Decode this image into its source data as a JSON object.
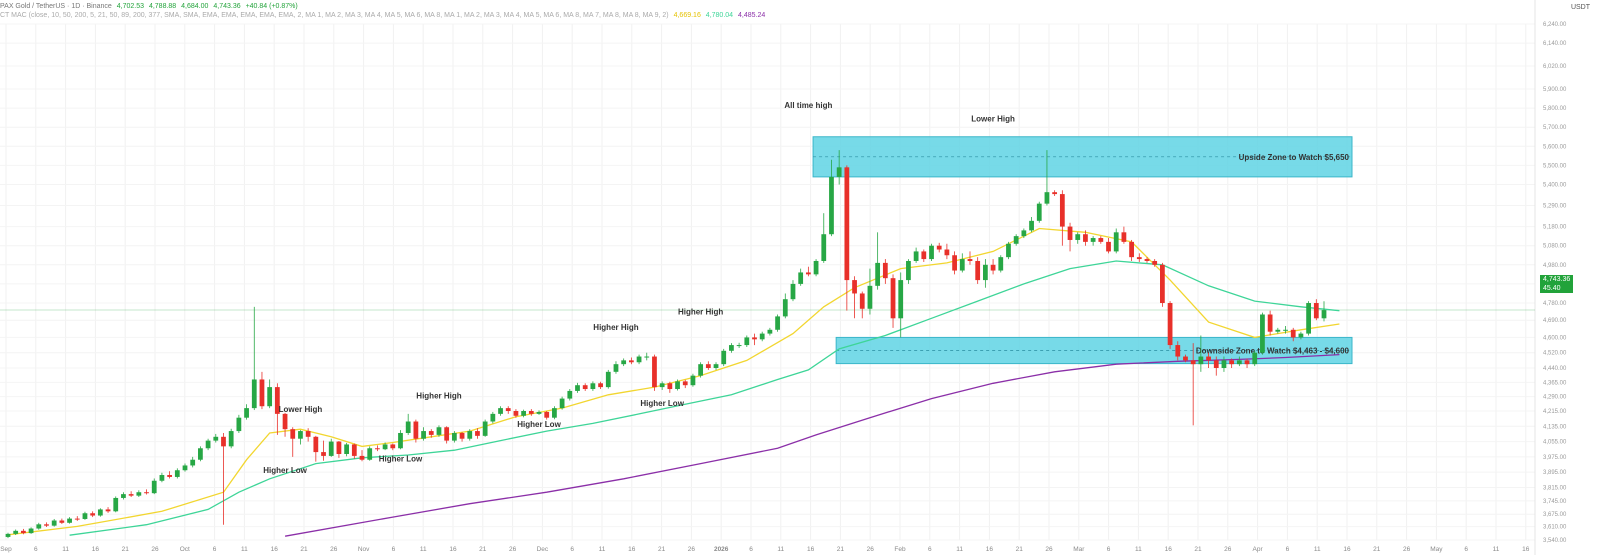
{
  "header": {
    "symbol": "PAX Gold / TetherUS · 1D · Binance",
    "open": "4,702.53",
    "high": "4,788.88",
    "low": "4,684.00",
    "close": "4,743.36",
    "change": "+40.84 (+0.87%)",
    "indicator_label": "CT MAC (close, 10, 50, 200, 5, 21, 50, 89, 200, 377, SMA, SMA, EMA, EMA, EMA, EMA, EMA, 2, MA 1, MA 2, MA 3, MA 4, MA 5, MA 6, MA 8, MA 1, MA 2, MA 3, MA 4, MA 5, MA 6, MA 8, MA 7, MA 8, MA 8, MA 9, 2)",
    "ma_values": [
      "4,669.16",
      "4,780.04",
      "4,485.24"
    ],
    "ma_colors": [
      "#e5c200",
      "#3ed598",
      "#8b2fa8"
    ]
  },
  "price_axis": {
    "currency": "USDT",
    "last_price": "4,743.36",
    "last_price_sub": "45.40",
    "last_price_color": "#22a33a"
  },
  "chart_data": {
    "type": "candlestick",
    "ylim": [
      3540,
      6240
    ],
    "y_ticks": [
      3540,
      3610,
      3675,
      3745,
      3815,
      3895,
      3975,
      4055,
      4135,
      4215,
      4290,
      4365,
      4440,
      4520,
      4600,
      4690,
      4780,
      4880,
      4980,
      5080,
      5180,
      5290,
      5400,
      5500,
      5600,
      5700,
      5800,
      5900,
      6020,
      6140,
      6240
    ],
    "x_ticks": [
      "Sep",
      "6",
      "11",
      "16",
      "21",
      "26",
      "Oct",
      "6",
      "11",
      "16",
      "21",
      "26",
      "Nov",
      "6",
      "11",
      "16",
      "21",
      "26",
      "Dec",
      "6",
      "11",
      "16",
      "21",
      "26",
      "2026",
      "6",
      "11",
      "16",
      "21",
      "26",
      "Feb",
      "6",
      "11",
      "16",
      "21",
      "26",
      "Mar",
      "6",
      "11",
      "16",
      "21",
      "26",
      "Apr",
      "6",
      "11",
      "16",
      "21",
      "26",
      "May",
      "6",
      "11",
      "16"
    ],
    "candles": [
      [
        3556,
        3572,
        3550,
        3578
      ],
      [
        3572,
        3588,
        3566,
        3595
      ],
      [
        3588,
        3576,
        3570,
        3598
      ],
      [
        3576,
        3600,
        3572,
        3606
      ],
      [
        3600,
        3622,
        3594,
        3630
      ],
      [
        3622,
        3615,
        3608,
        3632
      ],
      [
        3615,
        3642,
        3610,
        3650
      ],
      [
        3642,
        3630,
        3624,
        3652
      ],
      [
        3630,
        3652,
        3626,
        3660
      ],
      [
        3652,
        3650,
        3640,
        3665
      ],
      [
        3650,
        3680,
        3645,
        3688
      ],
      [
        3680,
        3668,
        3660,
        3690
      ],
      [
        3668,
        3700,
        3662,
        3706
      ],
      [
        3700,
        3690,
        3682,
        3712
      ],
      [
        3690,
        3760,
        3685,
        3768
      ],
      [
        3760,
        3780,
        3752,
        3790
      ],
      [
        3780,
        3772,
        3765,
        3795
      ],
      [
        3772,
        3790,
        3765,
        3800
      ],
      [
        3790,
        3785,
        3778,
        3805
      ],
      [
        3785,
        3850,
        3780,
        3862
      ],
      [
        3850,
        3880,
        3842,
        3892
      ],
      [
        3880,
        3870,
        3862,
        3900
      ],
      [
        3870,
        3905,
        3862,
        3915
      ],
      [
        3905,
        3930,
        3898,
        3940
      ],
      [
        3930,
        3960,
        3920,
        3975
      ],
      [
        3960,
        4020,
        3952,
        4030
      ],
      [
        4020,
        4060,
        4010,
        4070
      ],
      [
        4060,
        4080,
        4050,
        4095
      ],
      [
        4080,
        4030,
        3620,
        4100
      ],
      [
        4030,
        4110,
        4020,
        4122
      ],
      [
        4110,
        4180,
        4100,
        4195
      ],
      [
        4180,
        4230,
        4170,
        4250
      ],
      [
        4230,
        4380,
        4220,
        4760
      ],
      [
        4380,
        4240,
        4225,
        4420
      ],
      [
        4240,
        4340,
        4230,
        4380
      ],
      [
        4340,
        4200,
        4090,
        4360
      ],
      [
        4200,
        4120,
        4080,
        4205
      ],
      [
        4120,
        4070,
        3975,
        4130
      ],
      [
        4070,
        4110,
        4040,
        4115
      ],
      [
        4110,
        4080,
        4055,
        4125
      ],
      [
        4080,
        4000,
        3950,
        4085
      ],
      [
        4000,
        3980,
        3955,
        4060
      ],
      [
        3980,
        4055,
        3975,
        4070
      ],
      [
        4055,
        3990,
        3970,
        4058
      ],
      [
        3990,
        4040,
        3978,
        4048
      ],
      [
        4040,
        3980,
        3965,
        4045
      ],
      [
        3980,
        3960,
        3952,
        4010
      ],
      [
        3960,
        4020,
        3955,
        4030
      ],
      [
        4020,
        4015,
        4005,
        4035
      ],
      [
        4015,
        4040,
        4010,
        4050
      ],
      [
        4040,
        4020,
        4010,
        4045
      ],
      [
        4020,
        4100,
        4015,
        4115
      ],
      [
        4100,
        4160,
        4090,
        4200
      ],
      [
        4160,
        4070,
        4050,
        4170
      ],
      [
        4070,
        4110,
        4060,
        4130
      ],
      [
        4110,
        4090,
        4075,
        4120
      ],
      [
        4090,
        4130,
        4080,
        4140
      ],
      [
        4130,
        4060,
        4045,
        4135
      ],
      [
        4060,
        4100,
        4050,
        4110
      ],
      [
        4100,
        4070,
        4055,
        4105
      ],
      [
        4070,
        4110,
        4060,
        4120
      ],
      [
        4110,
        4085,
        4070,
        4125
      ],
      [
        4085,
        4160,
        4080,
        4170
      ],
      [
        4160,
        4200,
        4150,
        4210
      ],
      [
        4200,
        4230,
        4190,
        4240
      ],
      [
        4230,
        4215,
        4200,
        4240
      ],
      [
        4215,
        4190,
        4180,
        4225
      ],
      [
        4190,
        4215,
        4182,
        4222
      ],
      [
        4215,
        4200,
        4190,
        4225
      ],
      [
        4200,
        4210,
        4195,
        4218
      ],
      [
        4210,
        4180,
        4170,
        4215
      ],
      [
        4180,
        4230,
        4172,
        4240
      ],
      [
        4230,
        4280,
        4222,
        4290
      ],
      [
        4280,
        4320,
        4270,
        4330
      ],
      [
        4320,
        4350,
        4310,
        4362
      ],
      [
        4350,
        4330,
        4320,
        4360
      ],
      [
        4330,
        4360,
        4320,
        4370
      ],
      [
        4360,
        4340,
        4330,
        4368
      ],
      [
        4340,
        4420,
        4332,
        4430
      ],
      [
        4420,
        4460,
        4410,
        4475
      ],
      [
        4460,
        4480,
        4450,
        4490
      ],
      [
        4480,
        4470,
        4460,
        4495
      ],
      [
        4470,
        4500,
        4460,
        4510
      ],
      [
        4500,
        4500,
        4480,
        4520
      ],
      [
        4500,
        4340,
        4320,
        4510
      ],
      [
        4340,
        4360,
        4325,
        4370
      ],
      [
        4360,
        4330,
        4310,
        4368
      ],
      [
        4330,
        4370,
        4322,
        4380
      ],
      [
        4370,
        4350,
        4335,
        4378
      ],
      [
        4350,
        4400,
        4342,
        4410
      ],
      [
        4400,
        4460,
        4390,
        4470
      ],
      [
        4460,
        4440,
        4430,
        4475
      ],
      [
        4440,
        4460,
        4430,
        4470
      ],
      [
        4460,
        4530,
        4450,
        4540
      ],
      [
        4530,
        4560,
        4520,
        4570
      ],
      [
        4560,
        4560,
        4545,
        4572
      ],
      [
        4560,
        4600,
        4550,
        4610
      ],
      [
        4600,
        4590,
        4560,
        4620
      ],
      [
        4590,
        4620,
        4580,
        4630
      ],
      [
        4620,
        4640,
        4610,
        4650
      ],
      [
        4640,
        4710,
        4630,
        4720
      ],
      [
        4710,
        4800,
        4700,
        4830
      ],
      [
        4800,
        4880,
        4790,
        4900
      ],
      [
        4880,
        4940,
        4870,
        4960
      ],
      [
        4940,
        4930,
        4920,
        4970
      ],
      [
        4930,
        5000,
        4920,
        5010
      ],
      [
        5000,
        5140,
        4990,
        5250
      ],
      [
        5140,
        5440,
        5130,
        5530
      ],
      [
        5440,
        5490,
        5400,
        5580
      ],
      [
        5490,
        4900,
        4740,
        5500
      ],
      [
        4900,
        4830,
        4700,
        4920
      ],
      [
        4830,
        4750,
        4700,
        4840
      ],
      [
        4750,
        4870,
        4720,
        4960
      ],
      [
        4870,
        4990,
        4850,
        5150
      ],
      [
        4990,
        4910,
        4880,
        5010
      ],
      [
        4910,
        4700,
        4650,
        4930
      ],
      [
        4700,
        4900,
        4600,
        4940
      ],
      [
        4900,
        5000,
        4880,
        5010
      ],
      [
        5000,
        5050,
        4990,
        5070
      ],
      [
        5050,
        5010,
        4995,
        5060
      ],
      [
        5010,
        5080,
        5000,
        5090
      ],
      [
        5080,
        5060,
        5045,
        5095
      ],
      [
        5060,
        5030,
        5010,
        5090
      ],
      [
        5030,
        4950,
        4930,
        5050
      ],
      [
        4950,
        5010,
        4940,
        5040
      ],
      [
        5010,
        5000,
        4980,
        5050
      ],
      [
        5000,
        4900,
        4880,
        5020
      ],
      [
        4900,
        4980,
        4860,
        5010
      ],
      [
        4980,
        4950,
        4930,
        5010
      ],
      [
        4950,
        5020,
        4940,
        5030
      ],
      [
        5020,
        5090,
        5010,
        5100
      ],
      [
        5090,
        5130,
        5080,
        5140
      ],
      [
        5130,
        5160,
        5120,
        5170
      ],
      [
        5160,
        5210,
        5150,
        5230
      ],
      [
        5210,
        5300,
        5200,
        5310
      ],
      [
        5300,
        5360,
        5290,
        5580
      ],
      [
        5360,
        5350,
        5340,
        5370
      ],
      [
        5350,
        5180,
        5080,
        5370
      ],
      [
        5180,
        5110,
        5050,
        5200
      ],
      [
        5110,
        5140,
        5090,
        5150
      ],
      [
        5140,
        5100,
        5080,
        5160
      ],
      [
        5100,
        5120,
        5080,
        5130
      ],
      [
        5120,
        5100,
        5090,
        5130
      ],
      [
        5100,
        5050,
        5040,
        5120
      ],
      [
        5050,
        5150,
        5040,
        5170
      ],
      [
        5150,
        5100,
        5090,
        5180
      ],
      [
        5100,
        5020,
        5000,
        5110
      ],
      [
        5020,
        5010,
        4995,
        5040
      ],
      [
        5010,
        5000,
        4990,
        5020
      ],
      [
        5000,
        4980,
        4970,
        5010
      ],
      [
        4980,
        4780,
        4760,
        4990
      ],
      [
        4780,
        4560,
        4540,
        4790
      ],
      [
        4560,
        4500,
        4480,
        4580
      ],
      [
        4500,
        4480,
        4470,
        4510
      ],
      [
        4480,
        4460,
        4140,
        4570
      ],
      [
        4460,
        4500,
        4420,
        4610
      ],
      [
        4500,
        4480,
        4440,
        4520
      ],
      [
        4480,
        4440,
        4400,
        4500
      ],
      [
        4440,
        4480,
        4420,
        4500
      ],
      [
        4480,
        4460,
        4440,
        4490
      ],
      [
        4460,
        4480,
        4450,
        4500
      ],
      [
        4480,
        4460,
        4440,
        4490
      ],
      [
        4460,
        4520,
        4450,
        4530
      ],
      [
        4520,
        4720,
        4510,
        4730
      ],
      [
        4720,
        4630,
        4610,
        4740
      ],
      [
        4630,
        4640,
        4620,
        4650
      ],
      [
        4640,
        4640,
        4620,
        4660
      ],
      [
        4640,
        4600,
        4580,
        4650
      ],
      [
        4600,
        4620,
        4590,
        4630
      ],
      [
        4620,
        4780,
        4610,
        4790
      ],
      [
        4780,
        4700,
        4690,
        4800
      ],
      [
        4700,
        4743,
        4684,
        4789
      ]
    ],
    "ma_yellow": [
      [
        0,
        3567
      ],
      [
        9,
        3611
      ],
      [
        20,
        3690
      ],
      [
        28,
        3790
      ],
      [
        31,
        3960
      ],
      [
        34,
        4100
      ],
      [
        38,
        4120
      ],
      [
        42,
        4080
      ],
      [
        46,
        4030
      ],
      [
        50,
        4050
      ],
      [
        55,
        4080
      ],
      [
        60,
        4110
      ],
      [
        66,
        4185
      ],
      [
        72,
        4230
      ],
      [
        78,
        4300
      ],
      [
        84,
        4340
      ],
      [
        90,
        4400
      ],
      [
        96,
        4480
      ],
      [
        102,
        4620
      ],
      [
        106,
        4760
      ],
      [
        110,
        4860
      ],
      [
        116,
        4960
      ],
      [
        122,
        4990
      ],
      [
        128,
        5050
      ],
      [
        134,
        5170
      ],
      [
        140,
        5150
      ],
      [
        146,
        5100
      ],
      [
        151,
        4900
      ],
      [
        156,
        4680
      ],
      [
        162,
        4600
      ],
      [
        168,
        4640
      ],
      [
        173,
        4670
      ]
    ],
    "ma_green": [
      [
        8,
        3565
      ],
      [
        18,
        3620
      ],
      [
        26,
        3700
      ],
      [
        30,
        3790
      ],
      [
        34,
        3860
      ],
      [
        40,
        3940
      ],
      [
        46,
        3970
      ],
      [
        52,
        3985
      ],
      [
        58,
        4010
      ],
      [
        64,
        4060
      ],
      [
        70,
        4110
      ],
      [
        76,
        4150
      ],
      [
        82,
        4200
      ],
      [
        88,
        4250
      ],
      [
        94,
        4300
      ],
      [
        100,
        4380
      ],
      [
        104,
        4430
      ],
      [
        108,
        4540
      ],
      [
        114,
        4610
      ],
      [
        120,
        4700
      ],
      [
        126,
        4790
      ],
      [
        132,
        4880
      ],
      [
        138,
        4960
      ],
      [
        144,
        5000
      ],
      [
        150,
        4980
      ],
      [
        156,
        4870
      ],
      [
        162,
        4790
      ],
      [
        168,
        4760
      ],
      [
        173,
        4740
      ]
    ],
    "ma_purple": [
      [
        36,
        3560
      ],
      [
        50,
        3660
      ],
      [
        60,
        3730
      ],
      [
        70,
        3790
      ],
      [
        80,
        3860
      ],
      [
        90,
        3940
      ],
      [
        100,
        4020
      ],
      [
        105,
        4090
      ],
      [
        112,
        4180
      ],
      [
        120,
        4280
      ],
      [
        128,
        4360
      ],
      [
        136,
        4420
      ],
      [
        144,
        4460
      ],
      [
        152,
        4475
      ],
      [
        160,
        4485
      ],
      [
        166,
        4495
      ],
      [
        173,
        4510
      ]
    ],
    "zones": [
      {
        "label": "Upside Zone to Watch $5,650",
        "top": 5650,
        "bottom": 5440,
        "start_index": 105
      },
      {
        "label": "Downside Zone to Watch $4,463 - $4,600",
        "top": 4600,
        "bottom": 4463,
        "start_index": 108
      }
    ],
    "annotations": [
      {
        "text": "All time high",
        "x_index": 104,
        "y": 5800
      },
      {
        "text": "Lower High",
        "x_index": 128,
        "y": 5730
      },
      {
        "text": "Higher High",
        "x_index": 79,
        "y": 4640
      },
      {
        "text": "Higher High",
        "x_index": 90,
        "y": 4720
      },
      {
        "text": "Higher High",
        "x_index": 56,
        "y": 4280
      },
      {
        "text": "Lower High",
        "x_index": 38,
        "y": 4210
      },
      {
        "text": "Higher Low",
        "x_index": 36,
        "y": 3890
      },
      {
        "text": "Higher Low",
        "x_index": 51,
        "y": 3950
      },
      {
        "text": "Higher Low",
        "x_index": 69,
        "y": 4130
      },
      {
        "text": "Higher Low",
        "x_index": 85,
        "y": 4240
      }
    ],
    "last_price": 4743.36
  }
}
